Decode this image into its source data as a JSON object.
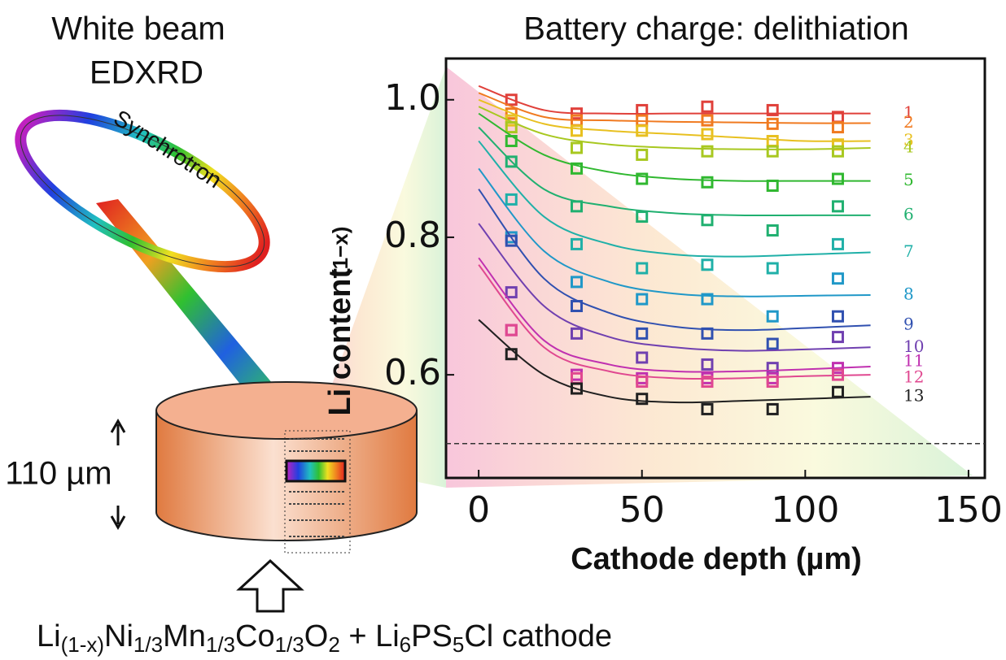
{
  "chart_data": {
    "type": "scatter-fit",
    "title": "Battery charge: delithiation",
    "x_label": "Cathode depth (µm)",
    "y_label": "Li content",
    "y_label_unit": "(1−x)",
    "xlim": [
      -10,
      155
    ],
    "ylim": [
      0.45,
      1.06
    ],
    "xticks": [
      0,
      50,
      100,
      150
    ],
    "yticks": [
      0.6,
      0.8,
      {
        "value": 1,
        "label": "1.0"
      }
    ],
    "reference_line": 0.5,
    "x": [
      10,
      30,
      50,
      70,
      90,
      110
    ],
    "fit_x": [
      0,
      20,
      40,
      60,
      80,
      100,
      120
    ],
    "series": [
      {
        "name": "1",
        "color": "#e0403a",
        "values": [
          1.0,
          0.98,
          0.985,
          0.99,
          0.985,
          0.975
        ],
        "fit": [
          1.02,
          0.985,
          0.98,
          0.98,
          0.98,
          0.98,
          0.98
        ]
      },
      {
        "name": "2",
        "color": "#f07a20",
        "values": [
          0.98,
          0.97,
          0.97,
          0.97,
          0.965,
          0.96
        ],
        "fit": [
          1.01,
          0.975,
          0.97,
          0.968,
          0.967,
          0.966,
          0.966
        ]
      },
      {
        "name": "3",
        "color": "#e8c020",
        "values": [
          0.97,
          0.955,
          0.955,
          0.95,
          0.94,
          0.935
        ],
        "fit": [
          1.0,
          0.965,
          0.955,
          0.95,
          0.945,
          0.94,
          0.94
        ]
      },
      {
        "name": "4",
        "color": "#a8c820",
        "values": [
          0.96,
          0.93,
          0.92,
          0.925,
          0.925,
          0.925
        ],
        "fit": [
          0.99,
          0.95,
          0.935,
          0.93,
          0.928,
          0.928,
          0.93
        ]
      },
      {
        "name": "5",
        "color": "#30b830",
        "values": [
          0.94,
          0.9,
          0.885,
          0.88,
          0.875,
          0.885
        ],
        "fit": [
          0.98,
          0.92,
          0.895,
          0.885,
          0.882,
          0.882,
          0.882
        ]
      },
      {
        "name": "6",
        "color": "#20b070",
        "values": [
          0.91,
          0.845,
          0.83,
          0.825,
          0.81,
          0.845
        ],
        "fit": [
          0.96,
          0.87,
          0.845,
          0.835,
          0.832,
          0.832,
          0.832
        ]
      },
      {
        "name": "7",
        "color": "#20b0a8",
        "values": [
          0.855,
          0.79,
          0.755,
          0.76,
          0.755,
          0.79
        ],
        "fit": [
          0.94,
          0.83,
          0.79,
          0.775,
          0.772,
          0.775,
          0.778
        ]
      },
      {
        "name": "8",
        "color": "#2098c8",
        "values": [
          0.8,
          0.735,
          0.71,
          0.71,
          0.685,
          0.74
        ],
        "fit": [
          0.9,
          0.78,
          0.735,
          0.718,
          0.714,
          0.715,
          0.716
        ]
      },
      {
        "name": "9",
        "color": "#3050b0",
        "values": [
          0.795,
          0.7,
          0.66,
          0.66,
          0.645,
          0.685
        ],
        "fit": [
          0.87,
          0.74,
          0.69,
          0.67,
          0.665,
          0.668,
          0.672
        ]
      },
      {
        "name": "10",
        "color": "#7040b0",
        "values": [
          0.72,
          0.66,
          0.625,
          0.615,
          0.61,
          0.655
        ],
        "fit": [
          0.82,
          0.7,
          0.655,
          0.64,
          0.635,
          0.637,
          0.64
        ]
      },
      {
        "name": "11",
        "color": "#c030b0",
        "values": [
          0.665,
          0.6,
          0.595,
          0.595,
          0.595,
          0.61
        ],
        "fit": [
          0.77,
          0.65,
          0.615,
          0.605,
          0.605,
          0.608,
          0.612
        ]
      },
      {
        "name": "12",
        "color": "#e04890",
        "values": [
          0.665,
          0.595,
          0.59,
          0.59,
          0.59,
          0.6
        ],
        "fit": [
          0.76,
          0.64,
          0.605,
          0.595,
          0.595,
          0.598,
          0.6
        ]
      },
      {
        "name": "13",
        "color": "#202020",
        "values": [
          0.63,
          0.58,
          0.565,
          0.55,
          0.55,
          0.575
        ],
        "fit": [
          0.68,
          0.6,
          0.568,
          0.56,
          0.562,
          0.565,
          0.568
        ]
      }
    ]
  },
  "illustration": {
    "title_line1": "White beam",
    "title_line2": "EDXRD",
    "ring_label": "Synchrotron",
    "thickness": "110 µm",
    "formula": [
      "Li",
      "(1-x)",
      "Ni",
      "1/3",
      "Mn",
      "1/3",
      "Co",
      "1/3",
      "O",
      "2",
      " + Li",
      "6",
      "PS",
      "5",
      "Cl cathode"
    ]
  }
}
